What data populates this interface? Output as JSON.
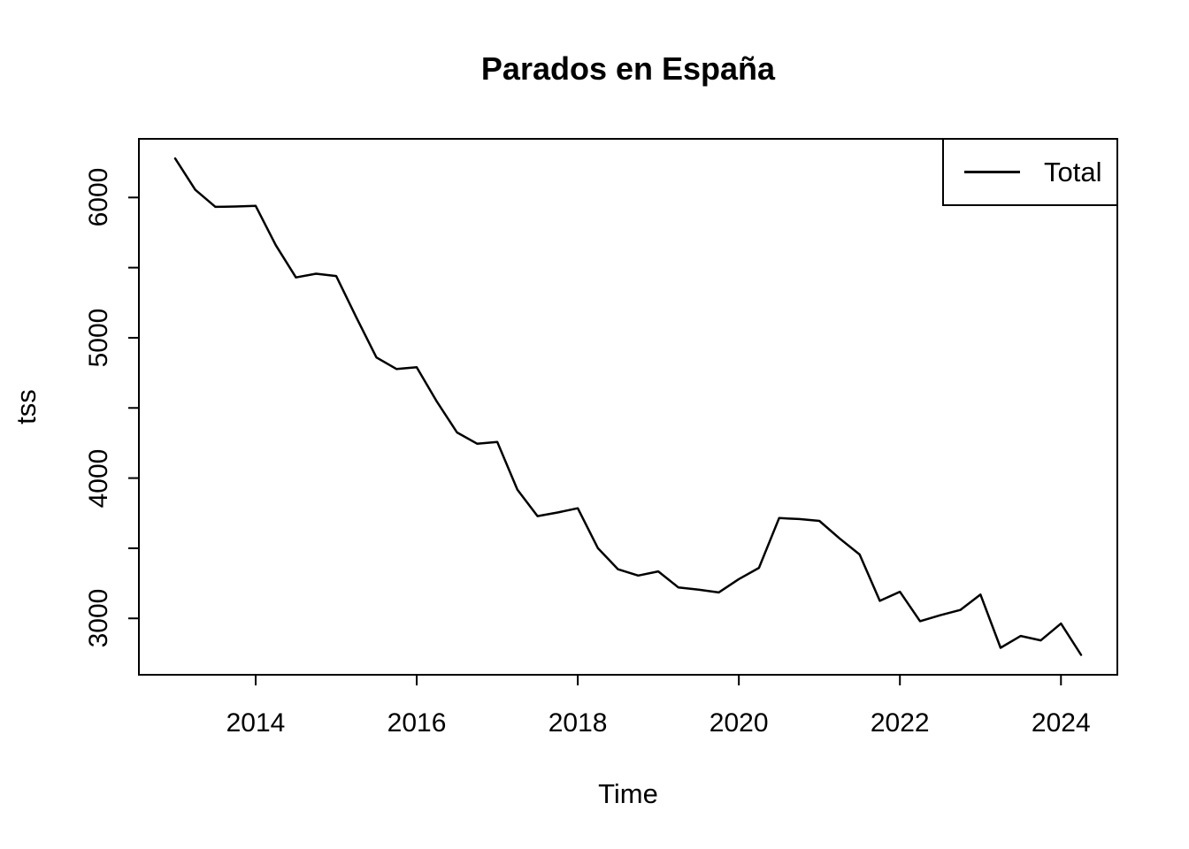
{
  "chart_data": {
    "type": "line",
    "title": "Parados en España",
    "xlabel": "Time",
    "ylabel": "tss",
    "legend": [
      {
        "label": "Total",
        "color": "#000000"
      }
    ],
    "series": [
      {
        "name": "Total",
        "color": "#000000",
        "x_start": 2013.0,
        "x_step": 0.25,
        "frequency": "quarterly",
        "values": [
          6278,
          6055,
          5933,
          5936,
          5940,
          5660,
          5430,
          5457,
          5440,
          5145,
          4860,
          4777,
          4790,
          4545,
          4325,
          4245,
          4258,
          3918,
          3729,
          3755,
          3785,
          3500,
          3350,
          3305,
          3335,
          3220,
          3205,
          3185,
          3280,
          3360,
          3715,
          3708,
          3695,
          3570,
          3455,
          3125,
          3190,
          2980,
          3022,
          3060,
          3170,
          2790,
          2875,
          2843,
          2963,
          2740
        ]
      }
    ],
    "x_ticks": [
      2014,
      2016,
      2018,
      2020,
      2022,
      2024
    ],
    "y_ticks_labeled": [
      3000,
      4000,
      5000,
      6000
    ],
    "y_ticks_unlabeled": [
      3500,
      4500,
      5500
    ],
    "xlim": [
      2012.55,
      2024.7
    ],
    "ylim": [
      2598,
      6418
    ],
    "grid": false,
    "legend_position": "topright",
    "background_color": "#ffffff",
    "axis_color": "#000000"
  }
}
